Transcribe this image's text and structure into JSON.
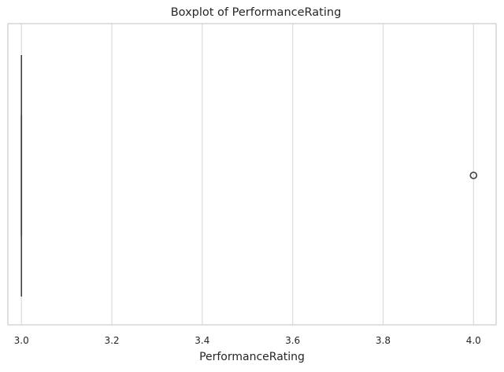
{
  "chart_data": {
    "type": "box",
    "title": "Boxplot of PerformanceRating",
    "xlabel": "PerformanceRating",
    "ylabel": "",
    "xlim": [
      2.97,
      4.05
    ],
    "x_ticks": [
      3.0,
      3.2,
      3.4,
      3.6,
      3.8,
      4.0
    ],
    "x_tick_labels": [
      "3.0",
      "3.2",
      "3.4",
      "3.6",
      "3.8",
      "4.0"
    ],
    "grid": true,
    "orientation": "horizontal",
    "box": {
      "min": 3.0,
      "q1": 3.0,
      "median": 3.0,
      "q3": 3.0,
      "max": 3.0
    },
    "outliers": [
      4.0
    ],
    "colors": {
      "box_line": "#3f3f3f",
      "grid": "#dcdcdc",
      "spine": "#cccccc",
      "outlier": "#3f3f3f"
    }
  }
}
